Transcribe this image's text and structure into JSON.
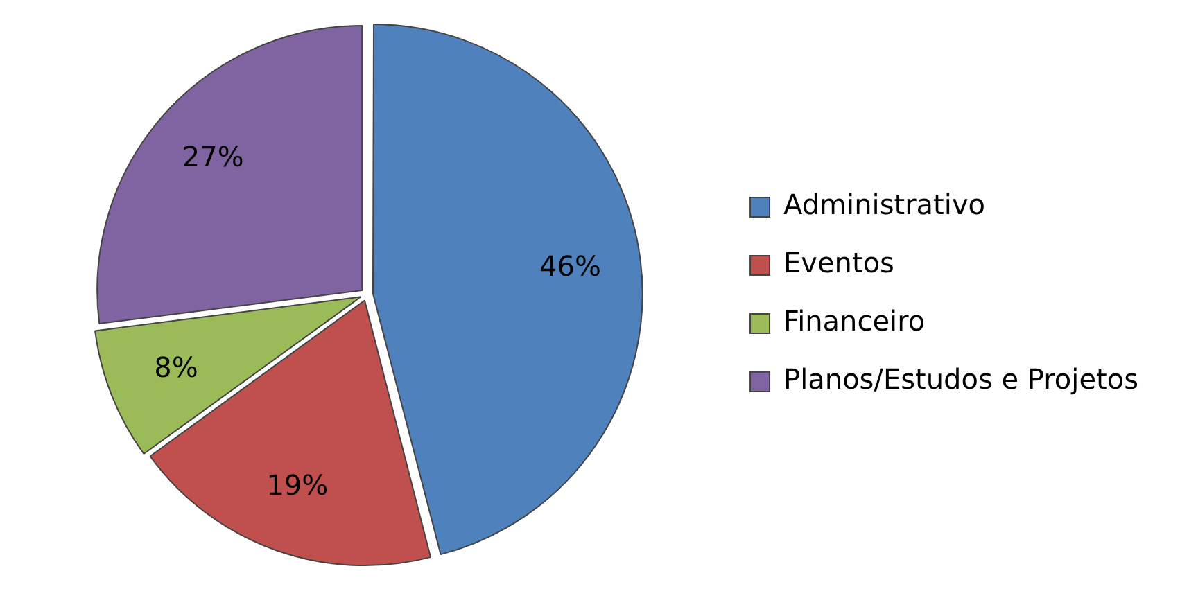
{
  "chart_data": {
    "type": "pie",
    "categories": [
      "Administrativo",
      "Eventos",
      "Financeiro",
      "Planos/Estudos e Projetos"
    ],
    "values": [
      46,
      19,
      8,
      27
    ],
    "colors": [
      "#4f81bd",
      "#c0504d",
      "#9bbb59",
      "#8064a2"
    ],
    "value_labels": [
      "46%",
      "19%",
      "8%",
      "27%"
    ],
    "legend": "right"
  }
}
